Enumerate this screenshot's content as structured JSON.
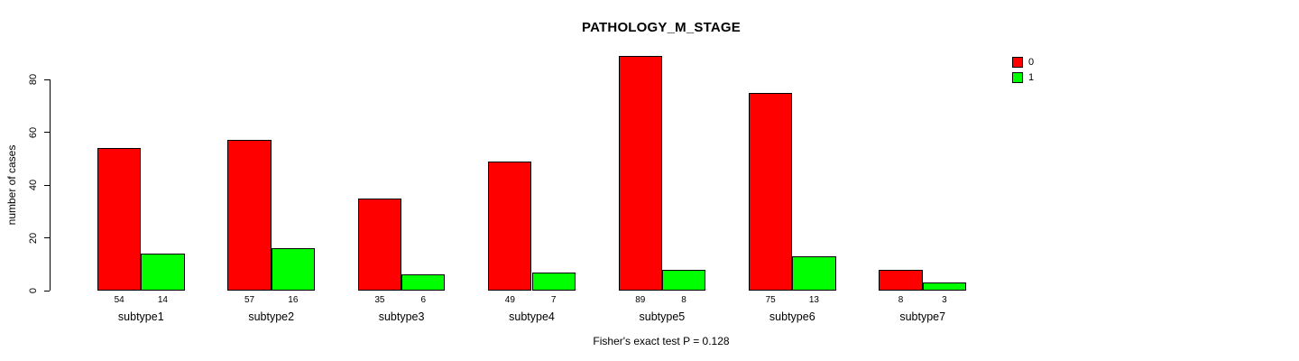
{
  "chart_data": {
    "type": "bar",
    "title": "PATHOLOGY_M_STAGE",
    "ylabel": "number of cases",
    "xlabel": "",
    "categories": [
      "subtype1",
      "subtype2",
      "subtype3",
      "subtype4",
      "subtype5",
      "subtype6",
      "subtype7"
    ],
    "series": [
      {
        "name": "0",
        "color": "#FF0000",
        "values": [
          54,
          57,
          35,
          49,
          89,
          75,
          8
        ]
      },
      {
        "name": "1",
        "color": "#00FF00",
        "values": [
          14,
          16,
          6,
          7,
          8,
          13,
          3
        ]
      }
    ],
    "value_labels_shown": true,
    "yticks": [
      0,
      20,
      40,
      60,
      80
    ],
    "ylim": [
      0,
      89
    ],
    "grid": false,
    "legend_position": "top-right",
    "caption": "Fisher's exact test P = 0.128"
  },
  "colors": {
    "background": "#FFFFFF",
    "axis": "#000000",
    "bar_border": "#000000",
    "text": "#000000"
  }
}
